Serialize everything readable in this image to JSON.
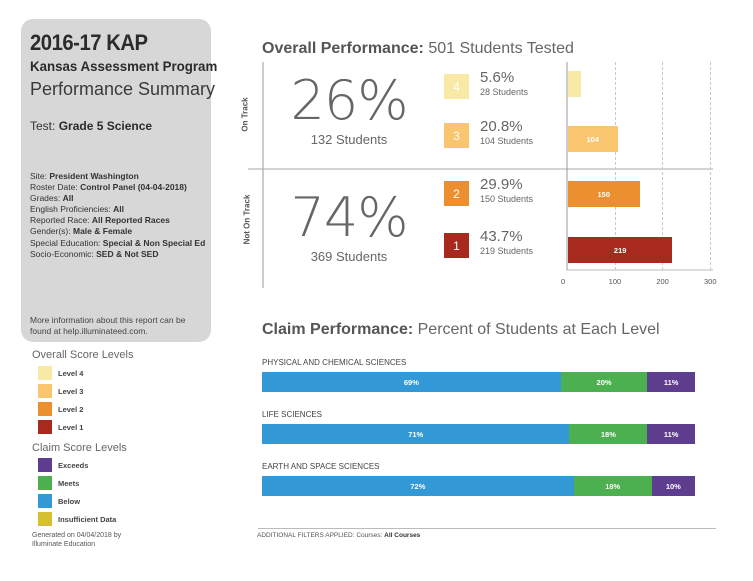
{
  "report": {
    "title": "2016-17 KAP",
    "program": "Kansas Assessment Program",
    "subtitle": "Performance Summary",
    "test_label": "Test:",
    "test_value": "Grade 5 Science",
    "filters": [
      {
        "label": "Site:",
        "value": "President Washington"
      },
      {
        "label": "Roster Date:",
        "value": "Control Panel (04-04-2018)"
      },
      {
        "label": "Grades:",
        "value": "All"
      },
      {
        "label": "English Proficiencies:",
        "value": "All"
      },
      {
        "label": "Reported Race:",
        "value": "All Reported Races"
      },
      {
        "label": "Gender(s):",
        "value": "Male & Female"
      },
      {
        "label": "Special Education:",
        "value": "Special & Non Special Ed"
      },
      {
        "label": "Socio-Economic:",
        "value": "SED & Not SED"
      }
    ],
    "info": "More information about this report can be found at help.illuminateed.com."
  },
  "legends": {
    "overall_title": "Overall Score Levels",
    "overall": [
      {
        "label": "Level 4",
        "color": "#f8eaa6"
      },
      {
        "label": "Level 3",
        "color": "#f9c56f"
      },
      {
        "label": "Level 2",
        "color": "#ec8f2f"
      },
      {
        "label": "Level 1",
        "color": "#a82a1e"
      }
    ],
    "claim_title": "Claim Score Levels",
    "claim": [
      {
        "label": "Exceeds",
        "color": "#5e3d8f"
      },
      {
        "label": "Meets",
        "color": "#4caf50"
      },
      {
        "label": "Below",
        "color": "#3399d6"
      },
      {
        "label": "Insufficient Data",
        "color": "#d4c030"
      }
    ],
    "generated": "Generated on 04/04/2018 by Illuminate Education"
  },
  "overall": {
    "heading_bold": "Overall Performance:",
    "heading_rest": "501 Students Tested",
    "on_track_label": "On Track",
    "not_on_track_label": "Not On Track",
    "on_track_pct": "26%",
    "on_track_students": "132 Students",
    "not_on_track_pct": "74%",
    "not_on_track_students": "369 Students"
  },
  "chart_data": [
    {
      "type": "bar",
      "orientation": "horizontal",
      "title": "Overall Performance: 501 Students Tested",
      "categories": [
        "4",
        "3",
        "2",
        "1"
      ],
      "values": [
        28,
        104,
        150,
        219
      ],
      "percents": [
        "5.6%",
        "20.8%",
        "29.9%",
        "43.7%"
      ],
      "counts": [
        "28 Students",
        "104 Students",
        "150 Students",
        "219 Students"
      ],
      "bar_labels": [
        "",
        "104",
        "150",
        "219"
      ],
      "colors": [
        "#f8eaa6",
        "#f9c56f",
        "#ec8f2f",
        "#a82a1e"
      ],
      "xlim": [
        0,
        300
      ],
      "xticks": [
        "0",
        "100",
        "200",
        "300"
      ],
      "grid": true
    },
    {
      "type": "bar",
      "orientation": "horizontal-stacked",
      "title_bold": "Claim Performance:",
      "title_rest": "Percent of Students at Each Level",
      "categories": [
        "PHYSICAL AND CHEMICAL SCIENCES",
        "LIFE SCIENCES",
        "EARTH AND SPACE SCIENCES"
      ],
      "series": [
        {
          "name": "Below",
          "color": "#3399d6",
          "values": [
            69,
            71,
            72
          ]
        },
        {
          "name": "Meets",
          "color": "#4caf50",
          "values": [
            20,
            18,
            18
          ]
        },
        {
          "name": "Exceeds",
          "color": "#5e3d8f",
          "values": [
            11,
            11,
            10
          ]
        }
      ]
    }
  ],
  "footer": {
    "prefix": "ADDITIONAL FILTERS APPLIED:",
    "courses_label": "Courses:",
    "courses_value": "All Courses"
  }
}
